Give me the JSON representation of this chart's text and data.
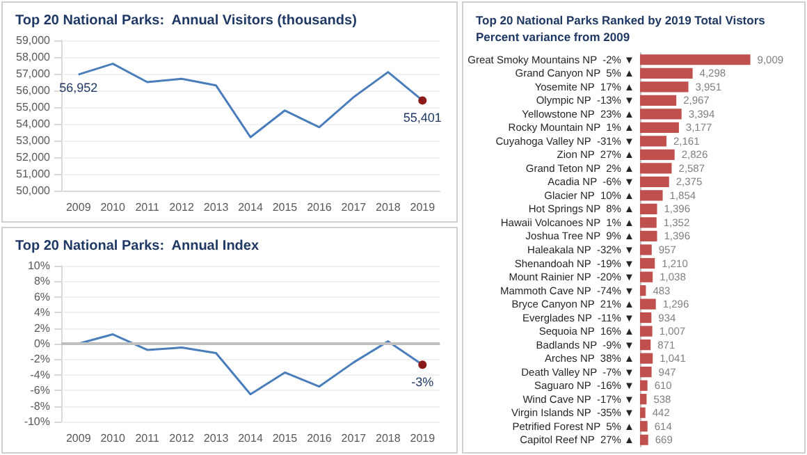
{
  "chart_data": [
    {
      "type": "line",
      "title": "Top 20 National Parks:  Annual Visitors (thousands)",
      "categories": [
        "2009",
        "2010",
        "2011",
        "2012",
        "2013",
        "2014",
        "2015",
        "2016",
        "2017",
        "2018",
        "2019"
      ],
      "series": [
        {
          "color": "#4a7ebb",
          "values": [
            56952,
            57600,
            56500,
            56700,
            56300,
            53200,
            54800,
            53800,
            55600,
            57100,
            55401
          ],
          "value_labels": [
            "56,952",
            null,
            null,
            null,
            null,
            null,
            null,
            null,
            null,
            null,
            "55,401"
          ],
          "colors": [
            null,
            null,
            null,
            null,
            null,
            null,
            null,
            null,
            null,
            null,
            "#8b1a1a"
          ]
        }
      ],
      "ylim": [
        50000,
        59000
      ],
      "yticks": [
        {
          "value": 50000,
          "label": "50,000"
        },
        {
          "value": 51000,
          "label": "51,000"
        },
        {
          "value": 52000,
          "label": "52,000"
        },
        {
          "value": 53000,
          "label": "53,000"
        },
        {
          "value": 54000,
          "label": "54,000"
        },
        {
          "value": 55000,
          "label": "55,000"
        },
        {
          "value": 56000,
          "label": "56,000"
        },
        {
          "value": 57000,
          "label": "57,000"
        },
        {
          "value": 58000,
          "label": "58,000"
        },
        {
          "value": 59000,
          "label": "59,000"
        }
      ],
      "grid": "y"
    },
    {
      "type": "line",
      "title": "Top 20 National Parks:  Annual Index",
      "categories": [
        "2009",
        "2010",
        "2011",
        "2012",
        "2013",
        "2014",
        "2015",
        "2016",
        "2017",
        "2018",
        "2019"
      ],
      "series": [
        {
          "color": "#4a7ebb",
          "values": [
            0,
            1.2,
            -0.8,
            -0.5,
            -1.2,
            -6.5,
            -3.7,
            -5.5,
            -2.4,
            0.3,
            -2.7
          ],
          "value_labels": [
            null,
            null,
            null,
            null,
            null,
            null,
            null,
            null,
            null,
            null,
            "-3%"
          ],
          "colors": [
            null,
            null,
            null,
            null,
            null,
            null,
            null,
            null,
            null,
            null,
            "#8b1a1a"
          ]
        }
      ],
      "ylim": [
        -10,
        10
      ],
      "yticks": [
        {
          "value": -10,
          "label": "-10%"
        },
        {
          "value": -8,
          "label": "-8%"
        },
        {
          "value": -6,
          "label": "-6%"
        },
        {
          "value": -4,
          "label": "-4%"
        },
        {
          "value": -2,
          "label": "-2%"
        },
        {
          "value": 0,
          "label": "0%"
        },
        {
          "value": 2,
          "label": "2%"
        },
        {
          "value": 4,
          "label": "4%"
        },
        {
          "value": 6,
          "label": "6%"
        },
        {
          "value": 8,
          "label": "8%"
        },
        {
          "value": 10,
          "label": "10%"
        }
      ],
      "ref_lines": [
        {
          "axis": "y",
          "value": 0,
          "color": "#bfbfbf"
        }
      ],
      "grid": "y"
    },
    {
      "type": "bar",
      "orientation": "horizontal",
      "title": "Top 20 National Parks Ranked by 2019 Total Vistors",
      "subtitle": "Percent variance from 2009",
      "categories": [
        "Great Smoky Mountains NP  -2% ▼",
        "Grand Canyon NP  5% ▲",
        "Yosemite NP  17% ▲",
        "Olympic NP  -13% ▼",
        "Yellowstone NP  23% ▲",
        "Rocky Mountain NP  1% ▲",
        "Cuyahoga Valley NP  -31% ▼",
        "Zion NP  27% ▲",
        "Grand Teton NP  2% ▲",
        "Acadia NP  -6% ▼",
        "Glacier NP  10% ▲",
        "Hot Springs NP  8% ▲",
        "Hawaii Volcanoes NP  1% ▲",
        "Joshua Tree NP  9% ▲",
        "Haleakala NP  -32% ▼",
        "Shenandoah NP  -19% ▼",
        "Mount Rainier NP  -20% ▼",
        "Mammoth Cave NP  -74% ▼",
        "Bryce Canyon NP  21% ▲",
        "Everglades NP  -11% ▼",
        "Sequoia NP  16% ▲",
        "Badlands NP  -9% ▼",
        "Arches NP  38% ▲",
        "Death Valley NP  -7% ▼",
        "Saguaro NP  -16% ▼",
        "Wind Cave NP  -17% ▼",
        "Virgin Islands NP  -35% ▼",
        "Petrified Forest NP  5% ▲",
        "Capitol Reef NP  27% ▲"
      ],
      "values": [
        9009,
        4298,
        3951,
        2967,
        3394,
        3177,
        2161,
        2826,
        2587,
        2375,
        1854,
        1396,
        1352,
        1396,
        957,
        1210,
        1038,
        483,
        1296,
        934,
        1007,
        871,
        1041,
        947,
        610,
        538,
        442,
        614,
        669
      ],
      "value_labels": [
        "9,009",
        "4,298",
        "3,951",
        "2,967",
        "3,394",
        "3,177",
        "2,161",
        "2,826",
        "2,587",
        "2,375",
        "1,854",
        "1,396",
        "1,352",
        "1,396",
        "957",
        "1,210",
        "1,038",
        "483",
        "1,296",
        "934",
        "1,007",
        "871",
        "1,041",
        "947",
        "610",
        "538",
        "442",
        "614",
        "669"
      ],
      "color": "#c0504d"
    }
  ]
}
